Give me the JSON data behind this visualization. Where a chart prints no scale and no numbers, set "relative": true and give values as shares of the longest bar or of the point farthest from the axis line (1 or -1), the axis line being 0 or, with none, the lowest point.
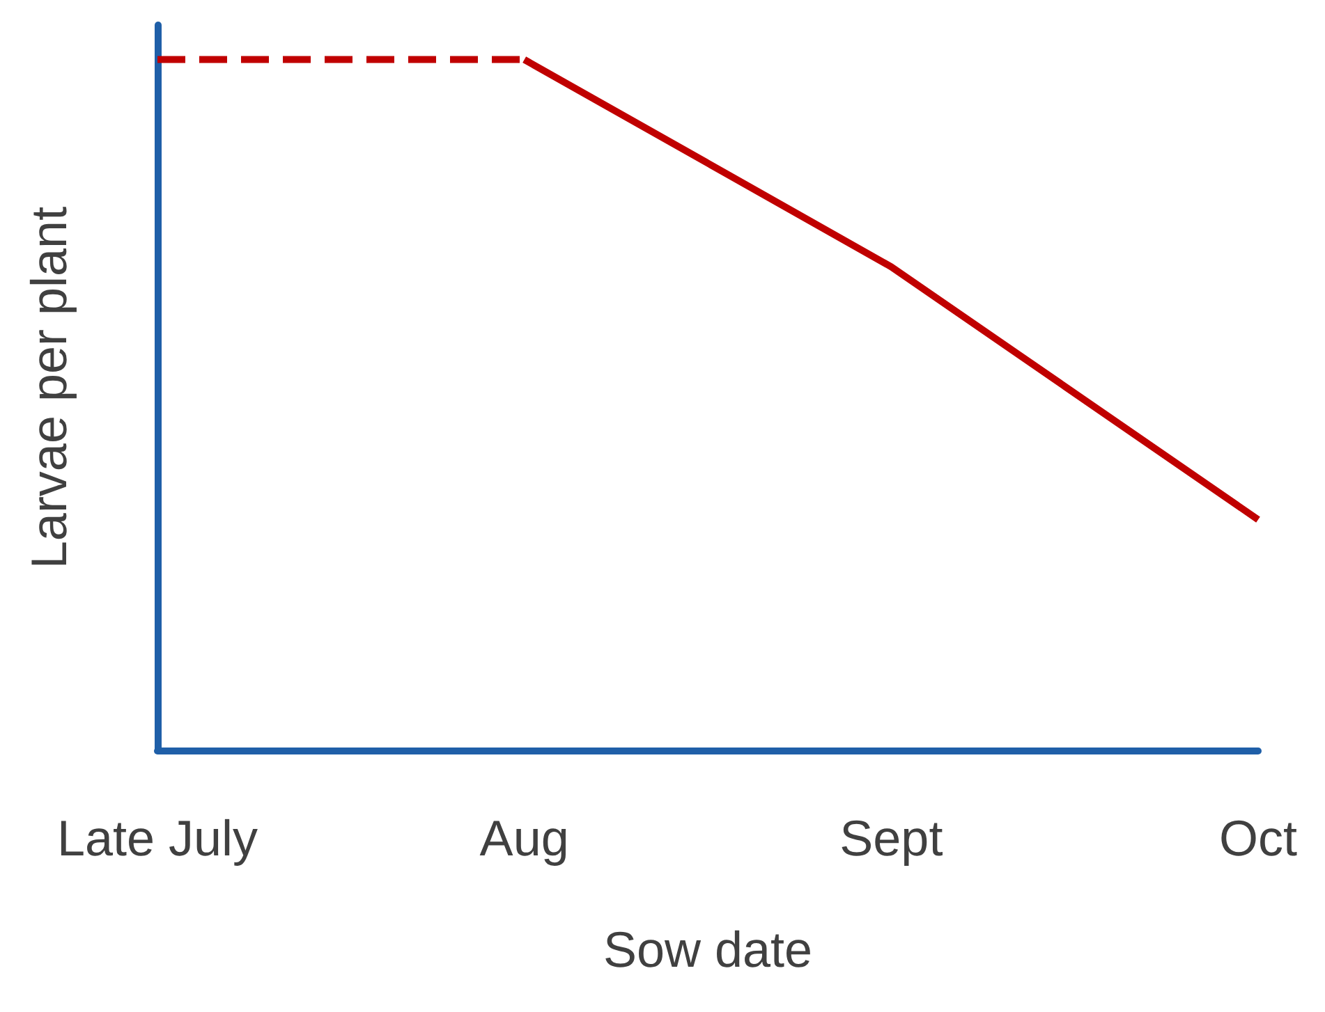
{
  "chart_data": {
    "type": "line",
    "relative": true,
    "xlabel": "Sow date",
    "ylabel": "Larvae per plant",
    "categories": [
      "Late July",
      "Aug",
      "Sept",
      "Oct"
    ],
    "grid": false,
    "marker": "none",
    "series": [
      {
        "color": "#c00000",
        "line_style": "dashed",
        "values": [
          1,
          1,
          null,
          null
        ]
      },
      {
        "color": "#c00000",
        "line_style": "solid",
        "values": [
          null,
          1,
          0.7,
          0.334
        ]
      }
    ]
  }
}
